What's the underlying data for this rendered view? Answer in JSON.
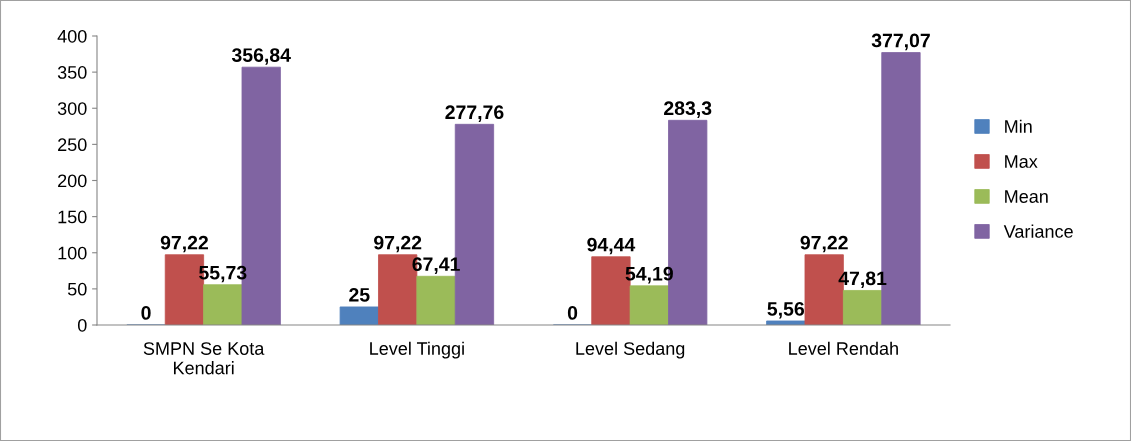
{
  "chart_data": {
    "type": "bar",
    "categories": [
      "SMPN Se Kota\nKendari",
      "Level Tinggi",
      "Level Sedang",
      "Level Rendah"
    ],
    "series": [
      {
        "name": "Min",
        "color": "#4f81bd",
        "values": [
          0,
          25,
          0,
          5.56
        ],
        "value_labels": [
          "0",
          "25",
          "0",
          "5,56"
        ]
      },
      {
        "name": "Max",
        "color": "#c0504d",
        "values": [
          97.22,
          97.22,
          94.44,
          97.22
        ],
        "value_labels": [
          "97,22",
          "97,22",
          "94,44",
          "97,22"
        ]
      },
      {
        "name": "Mean",
        "color": "#9bbb59",
        "values": [
          55.73,
          67.41,
          54.19,
          47.81
        ],
        "value_labels": [
          "55,73",
          "67,41",
          "54,19",
          "47,81"
        ]
      },
      {
        "name": "Variance",
        "color": "#8064a2",
        "values": [
          356.84,
          277.76,
          283.3,
          377.07
        ],
        "value_labels": [
          "356,84",
          "277,76",
          "283,3",
          "377,07"
        ]
      }
    ],
    "ylim": [
      0,
      400
    ],
    "yticks": [
      0,
      50,
      100,
      150,
      200,
      250,
      300,
      350,
      400
    ],
    "grid": false,
    "legend": "right"
  }
}
